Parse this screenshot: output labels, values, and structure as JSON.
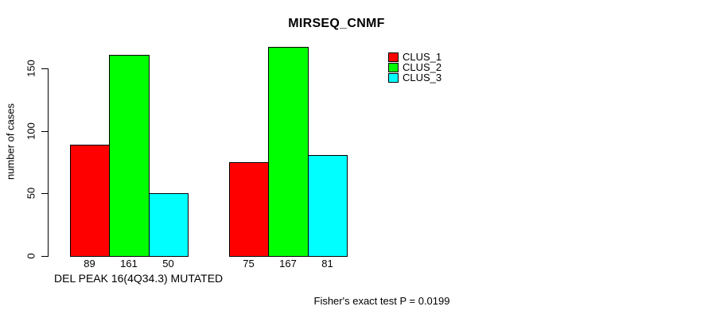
{
  "title": "MIRSEQ_CNMF",
  "y_axis": {
    "label": "number of cases",
    "tick_labels": [
      "0",
      "50",
      "100",
      "150"
    ]
  },
  "x_axis": {
    "label": "DEL PEAK 16(4Q34.3) MUTATED"
  },
  "annotation": "Fisher's exact test P = 0.0199",
  "legend": {
    "items": [
      {
        "label": "CLUS_1",
        "color": "#ff0000"
      },
      {
        "label": "CLUS_2",
        "color": "#00ff00"
      },
      {
        "label": "CLUS_3",
        "color": "#00ffff"
      }
    ]
  },
  "chart_data": {
    "type": "bar",
    "title": "MIRSEQ_CNMF",
    "xlabel": "DEL PEAK 16(4Q34.3) MUTATED",
    "ylabel": "number of cases",
    "annotation": "Fisher's exact test P = 0.0199",
    "group_count": 2,
    "series": [
      {
        "name": "CLUS_1",
        "color": "#ff0000",
        "values": [
          89,
          75
        ]
      },
      {
        "name": "CLUS_2",
        "color": "#00ff00",
        "values": [
          161,
          167
        ]
      },
      {
        "name": "CLUS_3",
        "color": "#00ffff",
        "values": [
          50,
          81
        ]
      }
    ],
    "bar_value_labels": [
      [
        "89",
        "161",
        "50"
      ],
      [
        "75",
        "167",
        "81"
      ]
    ],
    "yticks": [
      0,
      50,
      100,
      150
    ],
    "ylim": [
      0,
      175
    ],
    "grid": false,
    "legend_position": "right",
    "bar_borders": "black"
  }
}
